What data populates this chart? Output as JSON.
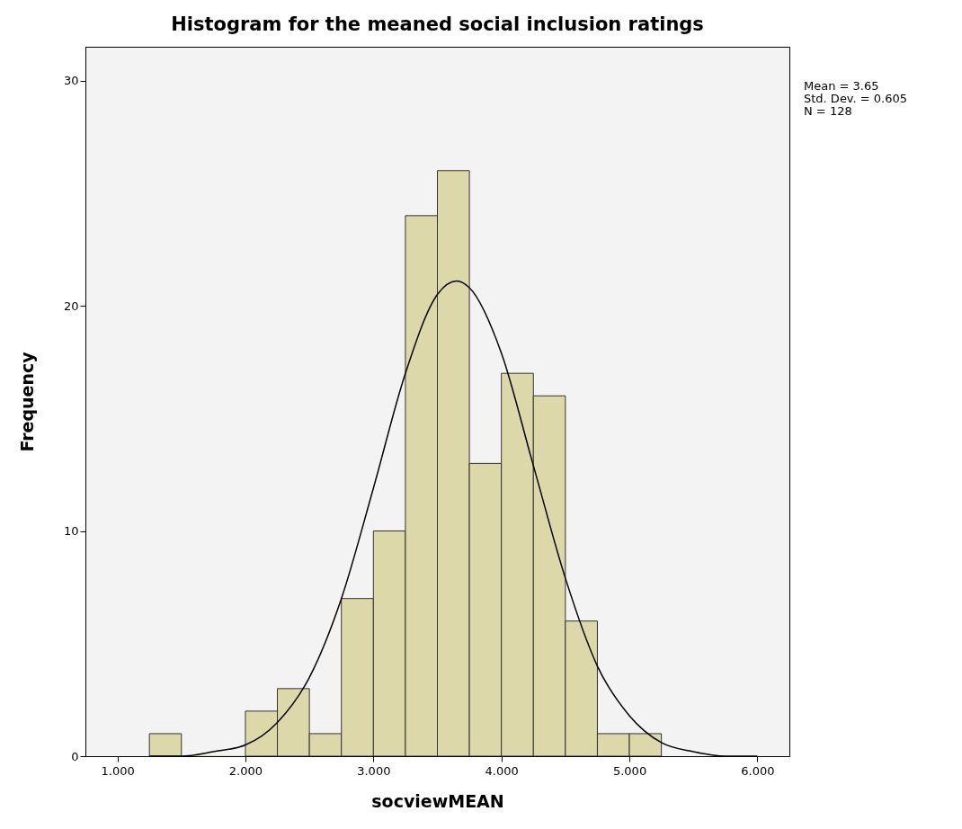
{
  "chart_data": {
    "type": "histogram",
    "title": "Histogram for the meaned social inclusion ratings",
    "xlabel": "socviewMEAN",
    "ylabel": "Frequency",
    "bins": [
      1.25,
      1.5,
      1.75,
      2.0,
      2.25,
      2.5,
      2.75,
      3.0,
      3.25,
      3.5,
      3.75,
      4.0,
      4.25,
      4.5,
      4.75,
      5.0,
      5.25
    ],
    "values": [
      1,
      0,
      0,
      2,
      3,
      1,
      7,
      10,
      24,
      26,
      13,
      17,
      16,
      6,
      1,
      1
    ],
    "color": "#dcd8a9",
    "series": [
      {
        "type": "line",
        "color": "#000000",
        "x": [
          1.25,
          1.5,
          1.75,
          2.0,
          2.25,
          2.5,
          2.75,
          3.0,
          3.25,
          3.5,
          3.65,
          3.75,
          4.0,
          4.25,
          4.5,
          4.75,
          5.0,
          5.25,
          5.5,
          5.75,
          6.0
        ],
        "values": [
          0,
          0,
          0.2,
          0.5,
          1.5,
          3.5,
          7,
          11.9,
          17,
          20.5,
          21.1,
          20.8,
          17.9,
          12.9,
          7.9,
          4,
          1.8,
          0.6,
          0.2,
          0,
          0
        ]
      }
    ],
    "xlim": [
      0.75,
      6.25
    ],
    "ylim": [
      0,
      31.5
    ],
    "xticks": [
      {
        "value": 1,
        "label": "1.000"
      },
      {
        "value": 2,
        "label": "2.000"
      },
      {
        "value": 3,
        "label": "3.000"
      },
      {
        "value": 4,
        "label": "4.000"
      },
      {
        "value": 5,
        "label": "5.000"
      },
      {
        "value": 6,
        "label": "6.000"
      }
    ],
    "yticks": [
      0,
      10,
      20,
      30
    ],
    "grid": false,
    "annotations": [
      "Mean = 3.65",
      "Std. Dev. = 0.605",
      "N = 128"
    ]
  }
}
